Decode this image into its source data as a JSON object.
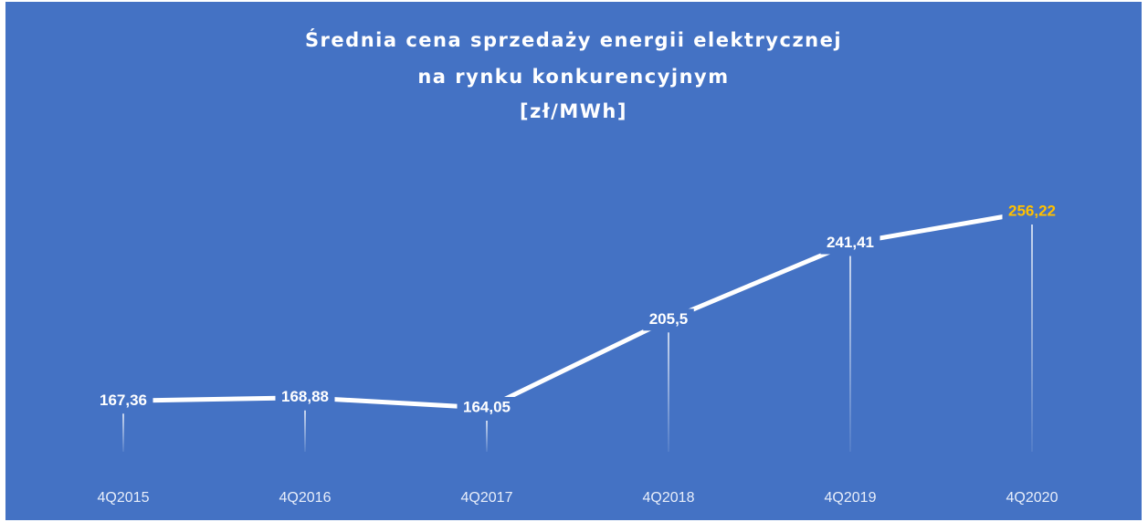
{
  "chart_data": {
    "type": "line",
    "title": [
      "Średnia cena sprzedaży energii elektrycznej",
      "na rynku konkurencyjnym",
      "[zł/MWh]"
    ],
    "categories": [
      "4Q2015",
      "4Q2016",
      "4Q2017",
      "4Q2018",
      "4Q2019",
      "4Q2020"
    ],
    "series": [
      {
        "color": "#ffffff",
        "values": [
          167.36,
          168.88,
          164.05,
          205.5,
          241.41,
          256.22
        ],
        "value_labels": [
          "167,36",
          "168,88",
          "164,05",
          "205,5",
          "241,41",
          "256,22"
        ],
        "value_label_colors": [
          "#ffffff",
          "#ffffff",
          "#ffffff",
          "#ffffff",
          "#ffffff",
          "#ffc000"
        ]
      }
    ],
    "background": "#4472c4"
  }
}
